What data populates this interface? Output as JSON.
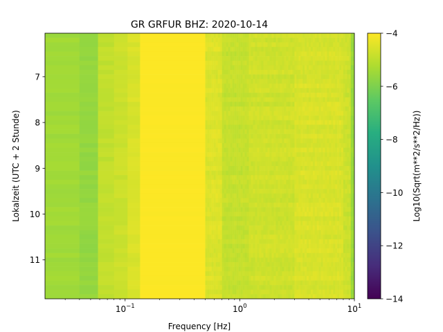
{
  "chart_data": {
    "type": "heatmap",
    "title": "GR GRFUR  BHZ: 2020-10-14",
    "xlabel": "Frequency [Hz]",
    "ylabel": "Lokalzeit (UTC + 2 Stunde)",
    "colorbar_label": "Log10(Sqrt(m**2/s**2/Hz))",
    "colormap": "viridis",
    "x_scale": "log",
    "xlim": [
      0.02,
      10
    ],
    "ylim": [
      11.85,
      6.05
    ],
    "x_ticks": [
      {
        "value": 0.1,
        "base": "10",
        "exp": "−1"
      },
      {
        "value": 1,
        "base": "10",
        "exp": "0"
      },
      {
        "value": 10,
        "base": "10",
        "exp": "1"
      }
    ],
    "y_ticks": [
      {
        "value": 7,
        "label": "7"
      },
      {
        "value": 8,
        "label": "8"
      },
      {
        "value": 9,
        "label": "9"
      },
      {
        "value": 10,
        "label": "10"
      },
      {
        "value": 11,
        "label": "11"
      }
    ],
    "colorbar_range": [
      -14,
      -4
    ],
    "colorbar_ticks": [
      {
        "value": -4,
        "label": "−4"
      },
      {
        "value": -6,
        "label": "−6"
      },
      {
        "value": -8,
        "label": "−8"
      },
      {
        "value": -10,
        "label": "−10"
      },
      {
        "value": -12,
        "label": "−12"
      },
      {
        "value": -14,
        "label": "−14"
      }
    ],
    "frequency_bands": [
      {
        "f_start": 0.02,
        "f_end": 0.04,
        "level": -5.4
      },
      {
        "f_start": 0.04,
        "f_end": 0.058,
        "level": -5.6
      },
      {
        "f_start": 0.058,
        "f_end": 0.08,
        "level": -4.9
      },
      {
        "f_start": 0.08,
        "f_end": 0.105,
        "level": -4.75
      },
      {
        "f_start": 0.105,
        "f_end": 0.135,
        "level": -4.55
      },
      {
        "f_start": 0.135,
        "f_end": 0.5,
        "level": -4.02
      },
      {
        "f_start": 0.5,
        "f_end": 0.7,
        "level": -4.5
      },
      {
        "f_start": 0.7,
        "f_end": 1.2,
        "level": -4.85
      },
      {
        "f_start": 1.2,
        "f_end": 3.0,
        "level": -4.7
      },
      {
        "f_start": 3.0,
        "f_end": 8.0,
        "level": -4.55
      },
      {
        "f_start": 8.0,
        "f_end": 9.3,
        "level": -4.75
      },
      {
        "f_start": 9.3,
        "f_end": 10,
        "level": -5.5
      }
    ]
  }
}
